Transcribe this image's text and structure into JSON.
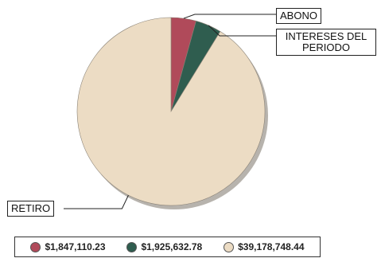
{
  "chart_data": {
    "type": "pie",
    "title": "",
    "slices": [
      {
        "label": "ABONO",
        "value": 1847110.23,
        "value_label": "$1,847,110.23",
        "color": "#b04a5a"
      },
      {
        "label": "INTERESES DEL PERIODO",
        "value": 1925632.78,
        "value_label": "$1,925,632.78",
        "color": "#2f5d4f"
      },
      {
        "label": "RETIRO",
        "value": 39178748.44,
        "value_label": "$39,178,748.44",
        "color": "#ecdcc4"
      }
    ],
    "legend_position": "bottom"
  },
  "callouts": {
    "abono": "ABONO",
    "intereses": "INTERESES DEL PERIODO",
    "retiro": "RETIRO"
  },
  "legend": [
    {
      "text": "$1,847,110.23",
      "color": "#b04a5a"
    },
    {
      "text": "$1,925,632.78",
      "color": "#2f5d4f"
    },
    {
      "text": "$39,178,748.44",
      "color": "#ecdcc4"
    }
  ]
}
